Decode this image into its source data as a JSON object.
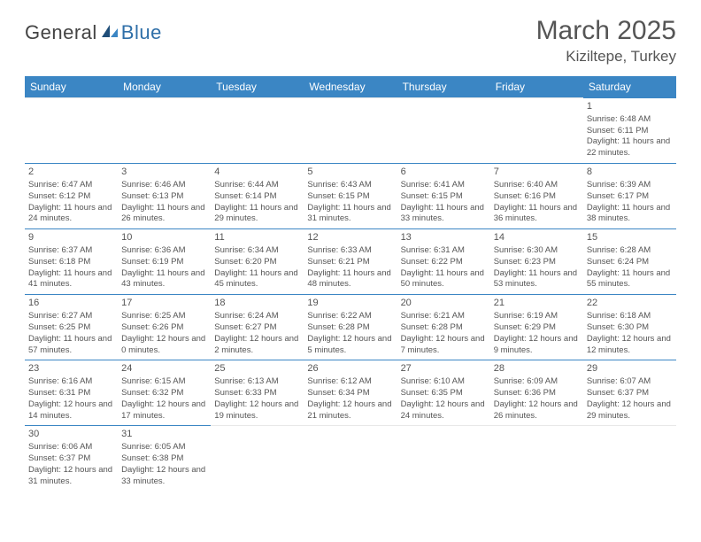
{
  "logo": {
    "text1": "General",
    "text2": "Blue"
  },
  "title": "March 2025",
  "location": "Kiziltepe, Turkey",
  "colors": {
    "header_bg": "#3b86c4",
    "header_fg": "#ffffff",
    "border": "#3b86c4",
    "text": "#555555",
    "logo_blue": "#2f6fa8"
  },
  "dayHeaders": [
    "Sunday",
    "Monday",
    "Tuesday",
    "Wednesday",
    "Thursday",
    "Friday",
    "Saturday"
  ],
  "weeks": [
    [
      null,
      null,
      null,
      null,
      null,
      null,
      {
        "n": 1,
        "sr": "6:48 AM",
        "ss": "6:11 PM",
        "dl": "11 hours and 22 minutes."
      }
    ],
    [
      {
        "n": 2,
        "sr": "6:47 AM",
        "ss": "6:12 PM",
        "dl": "11 hours and 24 minutes."
      },
      {
        "n": 3,
        "sr": "6:46 AM",
        "ss": "6:13 PM",
        "dl": "11 hours and 26 minutes."
      },
      {
        "n": 4,
        "sr": "6:44 AM",
        "ss": "6:14 PM",
        "dl": "11 hours and 29 minutes."
      },
      {
        "n": 5,
        "sr": "6:43 AM",
        "ss": "6:15 PM",
        "dl": "11 hours and 31 minutes."
      },
      {
        "n": 6,
        "sr": "6:41 AM",
        "ss": "6:15 PM",
        "dl": "11 hours and 33 minutes."
      },
      {
        "n": 7,
        "sr": "6:40 AM",
        "ss": "6:16 PM",
        "dl": "11 hours and 36 minutes."
      },
      {
        "n": 8,
        "sr": "6:39 AM",
        "ss": "6:17 PM",
        "dl": "11 hours and 38 minutes."
      }
    ],
    [
      {
        "n": 9,
        "sr": "6:37 AM",
        "ss": "6:18 PM",
        "dl": "11 hours and 41 minutes."
      },
      {
        "n": 10,
        "sr": "6:36 AM",
        "ss": "6:19 PM",
        "dl": "11 hours and 43 minutes."
      },
      {
        "n": 11,
        "sr": "6:34 AM",
        "ss": "6:20 PM",
        "dl": "11 hours and 45 minutes."
      },
      {
        "n": 12,
        "sr": "6:33 AM",
        "ss": "6:21 PM",
        "dl": "11 hours and 48 minutes."
      },
      {
        "n": 13,
        "sr": "6:31 AM",
        "ss": "6:22 PM",
        "dl": "11 hours and 50 minutes."
      },
      {
        "n": 14,
        "sr": "6:30 AM",
        "ss": "6:23 PM",
        "dl": "11 hours and 53 minutes."
      },
      {
        "n": 15,
        "sr": "6:28 AM",
        "ss": "6:24 PM",
        "dl": "11 hours and 55 minutes."
      }
    ],
    [
      {
        "n": 16,
        "sr": "6:27 AM",
        "ss": "6:25 PM",
        "dl": "11 hours and 57 minutes."
      },
      {
        "n": 17,
        "sr": "6:25 AM",
        "ss": "6:26 PM",
        "dl": "12 hours and 0 minutes."
      },
      {
        "n": 18,
        "sr": "6:24 AM",
        "ss": "6:27 PM",
        "dl": "12 hours and 2 minutes."
      },
      {
        "n": 19,
        "sr": "6:22 AM",
        "ss": "6:28 PM",
        "dl": "12 hours and 5 minutes."
      },
      {
        "n": 20,
        "sr": "6:21 AM",
        "ss": "6:28 PM",
        "dl": "12 hours and 7 minutes."
      },
      {
        "n": 21,
        "sr": "6:19 AM",
        "ss": "6:29 PM",
        "dl": "12 hours and 9 minutes."
      },
      {
        "n": 22,
        "sr": "6:18 AM",
        "ss": "6:30 PM",
        "dl": "12 hours and 12 minutes."
      }
    ],
    [
      {
        "n": 23,
        "sr": "6:16 AM",
        "ss": "6:31 PM",
        "dl": "12 hours and 14 minutes."
      },
      {
        "n": 24,
        "sr": "6:15 AM",
        "ss": "6:32 PM",
        "dl": "12 hours and 17 minutes."
      },
      {
        "n": 25,
        "sr": "6:13 AM",
        "ss": "6:33 PM",
        "dl": "12 hours and 19 minutes."
      },
      {
        "n": 26,
        "sr": "6:12 AM",
        "ss": "6:34 PM",
        "dl": "12 hours and 21 minutes."
      },
      {
        "n": 27,
        "sr": "6:10 AM",
        "ss": "6:35 PM",
        "dl": "12 hours and 24 minutes."
      },
      {
        "n": 28,
        "sr": "6:09 AM",
        "ss": "6:36 PM",
        "dl": "12 hours and 26 minutes."
      },
      {
        "n": 29,
        "sr": "6:07 AM",
        "ss": "6:37 PM",
        "dl": "12 hours and 29 minutes."
      }
    ],
    [
      {
        "n": 30,
        "sr": "6:06 AM",
        "ss": "6:37 PM",
        "dl": "12 hours and 31 minutes."
      },
      {
        "n": 31,
        "sr": "6:05 AM",
        "ss": "6:38 PM",
        "dl": "12 hours and 33 minutes."
      },
      null,
      null,
      null,
      null,
      null
    ]
  ]
}
